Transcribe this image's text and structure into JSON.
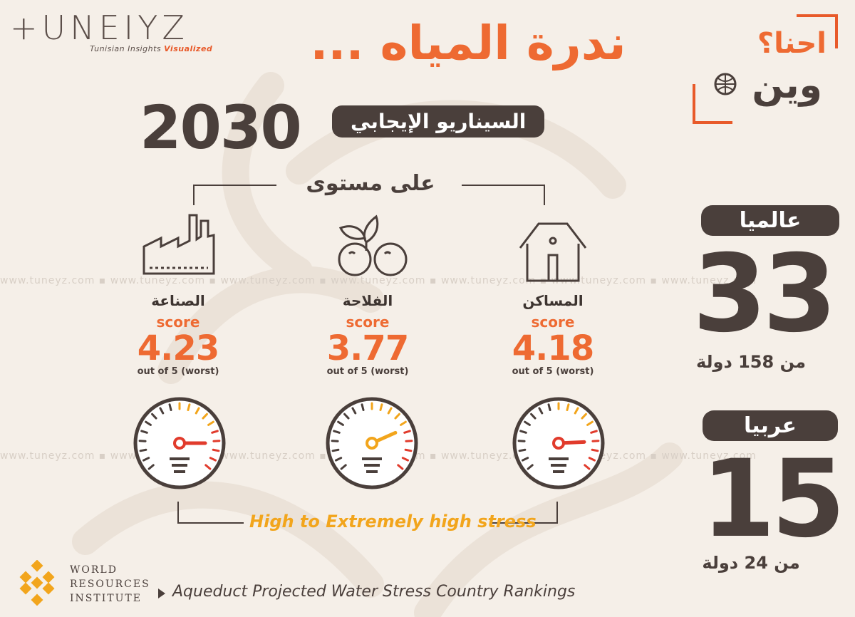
{
  "logo": {
    "name": "+UNEIYZ",
    "tagline_main": "Tunisian Insights",
    "tagline_hl": "Visualized"
  },
  "title": "ندرة المياه ...",
  "year": "2030",
  "scenario": "السيناريو الإيجابي",
  "level_label": "على مستوى",
  "brand_badge": {
    "line1": "احنا؟",
    "line2": "وين"
  },
  "watermark": "www.tuneyz.com ▪ www.tuneyz.com ▪ www.tuneyz.com ▪ www.tuneyz.com ▪ www.tuneyz.com ▪ www.tuneyz.com ▪ www.tuneyz.com",
  "sectors": [
    {
      "name": "الصناعة",
      "score_label": "score",
      "value": "4.23",
      "sub": "out of 5 (worst)",
      "gauge_fraction": 0.846,
      "needle_color": "#e13b2c"
    },
    {
      "name": "الفلاحة",
      "score_label": "score",
      "value": "3.77",
      "sub": "out of 5 (worst)",
      "gauge_fraction": 0.754,
      "needle_color": "#f2a51c"
    },
    {
      "name": "المساكن",
      "score_label": "score",
      "value": "4.18",
      "sub": "out of 5 (worst)",
      "gauge_fraction": 0.836,
      "needle_color": "#e13b2c"
    }
  ],
  "stress_label": "High to Extremely high stress",
  "rankings": {
    "world": {
      "label": "عالميا",
      "rank": "33",
      "of": "من 158 دولة"
    },
    "arab": {
      "label": "عربيا",
      "rank": "15",
      "of": "من 24 دولة"
    }
  },
  "source": {
    "org_line1": "WORLD",
    "org_line2": "RESOURCES",
    "org_line3": "INSTITUTE",
    "text": "Aqueduct Projected Water Stress Country Rankings"
  },
  "colors": {
    "accent": "#ee6a32",
    "dark": "#4a3f3b",
    "yellow": "#f2a51c",
    "red": "#e13b2c",
    "bg": "#f5efe8"
  }
}
